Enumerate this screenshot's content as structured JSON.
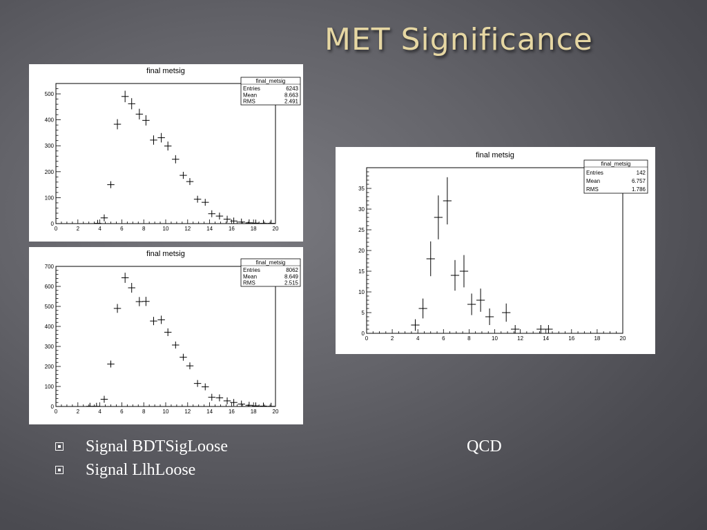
{
  "slide": {
    "title": "MET Significance",
    "bullets": [
      "Signal BDTSigLoose",
      "Signal LlhLoose"
    ],
    "qcd_label": "QCD"
  },
  "colors": {
    "title": "#e6d7a3",
    "marker": "#000000",
    "panel_bg": "#ffffff"
  },
  "chart_data": [
    {
      "type": "scatter",
      "title": "final metsig",
      "xlim": [
        0,
        20
      ],
      "ylim": [
        0,
        540
      ],
      "xticks": [
        0,
        2,
        4,
        6,
        8,
        10,
        12,
        14,
        16,
        18,
        20
      ],
      "yticks": [
        0,
        100,
        200,
        300,
        400,
        500
      ],
      "stats": {
        "name": "final_metsig",
        "rows": [
          [
            "Entries",
            "6243"
          ],
          [
            "Mean",
            "8.663"
          ],
          [
            "RMS",
            "2.491"
          ]
        ]
      },
      "points": [
        {
          "x": 3.8,
          "y": 1
        },
        {
          "x": 4.4,
          "y": 22
        },
        {
          "x": 5.0,
          "y": 150
        },
        {
          "x": 5.6,
          "y": 383
        },
        {
          "x": 6.3,
          "y": 490
        },
        {
          "x": 6.9,
          "y": 462
        },
        {
          "x": 7.6,
          "y": 422
        },
        {
          "x": 8.2,
          "y": 398
        },
        {
          "x": 8.9,
          "y": 322
        },
        {
          "x": 9.6,
          "y": 331
        },
        {
          "x": 10.2,
          "y": 299
        },
        {
          "x": 10.9,
          "y": 248
        },
        {
          "x": 11.6,
          "y": 186
        },
        {
          "x": 12.2,
          "y": 162
        },
        {
          "x": 12.9,
          "y": 94
        },
        {
          "x": 13.6,
          "y": 82
        },
        {
          "x": 14.2,
          "y": 38
        },
        {
          "x": 14.9,
          "y": 29
        },
        {
          "x": 15.6,
          "y": 17
        },
        {
          "x": 16.2,
          "y": 10
        },
        {
          "x": 16.9,
          "y": 6
        },
        {
          "x": 17.6,
          "y": 3
        },
        {
          "x": 18.2,
          "y": 2
        },
        {
          "x": 18.9,
          "y": 1
        },
        {
          "x": 19.6,
          "y": 1
        }
      ]
    },
    {
      "type": "scatter",
      "title": "final metsig",
      "xlim": [
        0,
        20
      ],
      "ylim": [
        0,
        700
      ],
      "xticks": [
        0,
        2,
        4,
        6,
        8,
        10,
        12,
        14,
        16,
        18,
        20
      ],
      "yticks": [
        0,
        100,
        200,
        300,
        400,
        500,
        600,
        700
      ],
      "stats": {
        "name": "final_metsig",
        "rows": [
          [
            "Entries",
            "8062"
          ],
          [
            "Mean",
            "8.649"
          ],
          [
            "RMS",
            "2.515"
          ]
        ]
      },
      "points": [
        {
          "x": 3.1,
          "y": 1
        },
        {
          "x": 3.7,
          "y": 1
        },
        {
          "x": 4.4,
          "y": 36
        },
        {
          "x": 5.0,
          "y": 212
        },
        {
          "x": 5.6,
          "y": 490
        },
        {
          "x": 6.3,
          "y": 643
        },
        {
          "x": 6.9,
          "y": 593
        },
        {
          "x": 7.6,
          "y": 524
        },
        {
          "x": 8.2,
          "y": 525
        },
        {
          "x": 8.9,
          "y": 427
        },
        {
          "x": 9.6,
          "y": 433
        },
        {
          "x": 10.2,
          "y": 371
        },
        {
          "x": 10.9,
          "y": 307
        },
        {
          "x": 11.6,
          "y": 246
        },
        {
          "x": 12.2,
          "y": 203
        },
        {
          "x": 12.9,
          "y": 115
        },
        {
          "x": 13.6,
          "y": 98
        },
        {
          "x": 14.2,
          "y": 46
        },
        {
          "x": 14.9,
          "y": 43
        },
        {
          "x": 15.6,
          "y": 28
        },
        {
          "x": 16.2,
          "y": 20
        },
        {
          "x": 16.9,
          "y": 12
        },
        {
          "x": 17.6,
          "y": 6
        },
        {
          "x": 18.2,
          "y": 3
        },
        {
          "x": 18.9,
          "y": 2
        },
        {
          "x": 19.6,
          "y": 1
        }
      ]
    },
    {
      "type": "scatter",
      "title": "final metsig",
      "xlim": [
        0,
        20
      ],
      "ylim": [
        0,
        40
      ],
      "xticks": [
        0,
        2,
        4,
        6,
        8,
        10,
        12,
        14,
        16,
        18,
        20
      ],
      "yticks": [
        0,
        5,
        10,
        15,
        20,
        25,
        30,
        35
      ],
      "stats": {
        "name": "final_metsig",
        "rows": [
          [
            "Entries",
            "142"
          ],
          [
            "Mean",
            "6.757"
          ],
          [
            "RMS",
            "1.786"
          ]
        ]
      },
      "points": [
        {
          "x": 3.8,
          "y": 2,
          "err": 1.4
        },
        {
          "x": 4.4,
          "y": 6,
          "err": 2.4
        },
        {
          "x": 5.0,
          "y": 18,
          "err": 4.2
        },
        {
          "x": 5.6,
          "y": 28,
          "err": 5.3
        },
        {
          "x": 6.3,
          "y": 32,
          "err": 5.7
        },
        {
          "x": 6.9,
          "y": 14,
          "err": 3.7
        },
        {
          "x": 7.6,
          "y": 15,
          "err": 3.9
        },
        {
          "x": 8.2,
          "y": 7,
          "err": 2.6
        },
        {
          "x": 8.9,
          "y": 8,
          "err": 2.8
        },
        {
          "x": 9.6,
          "y": 4,
          "err": 2.0
        },
        {
          "x": 10.9,
          "y": 5,
          "err": 2.2
        },
        {
          "x": 11.6,
          "y": 1,
          "err": 1.0
        },
        {
          "x": 13.6,
          "y": 1,
          "err": 1.0
        },
        {
          "x": 14.2,
          "y": 1,
          "err": 1.0
        }
      ]
    }
  ]
}
